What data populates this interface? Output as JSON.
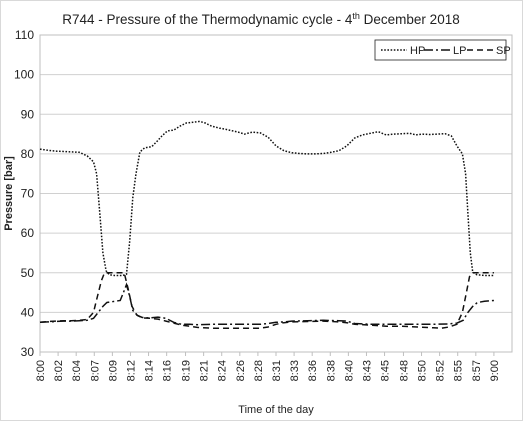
{
  "chart_data": {
    "type": "line",
    "title": "R744 - Pressure of the Thermodynamic cycle - 4",
    "title_sup": "th",
    "title_suffix": " December 2018",
    "xlabel": "Time of the day",
    "ylabel": "Pressure [bar]",
    "ylim": [
      30,
      110
    ],
    "yticks": [
      30,
      40,
      50,
      60,
      70,
      80,
      90,
      100,
      110
    ],
    "xlim": [
      0,
      60
    ],
    "xticks": [
      {
        "t": 0,
        "label": "8:00"
      },
      {
        "t": 2.3,
        "label": "8:02"
      },
      {
        "t": 4.6,
        "label": "8:04"
      },
      {
        "t": 6.9,
        "label": "8:07"
      },
      {
        "t": 9.2,
        "label": "8:09"
      },
      {
        "t": 11.5,
        "label": "8:12"
      },
      {
        "t": 13.8,
        "label": "8:14"
      },
      {
        "t": 16.1,
        "label": "8:16"
      },
      {
        "t": 18.5,
        "label": "8:19"
      },
      {
        "t": 20.8,
        "label": "8:21"
      },
      {
        "t": 23.1,
        "label": "8:24"
      },
      {
        "t": 25.4,
        "label": "8:26"
      },
      {
        "t": 27.7,
        "label": "8:28"
      },
      {
        "t": 30.0,
        "label": "8:31"
      },
      {
        "t": 32.3,
        "label": "8:33"
      },
      {
        "t": 34.6,
        "label": "8:36"
      },
      {
        "t": 36.9,
        "label": "8:38"
      },
      {
        "t": 39.2,
        "label": "8:40"
      },
      {
        "t": 41.5,
        "label": "8:43"
      },
      {
        "t": 43.8,
        "label": "8:45"
      },
      {
        "t": 46.2,
        "label": "8:48"
      },
      {
        "t": 48.5,
        "label": "8:50"
      },
      {
        "t": 50.8,
        "label": "8:52"
      },
      {
        "t": 53.1,
        "label": "8:55"
      },
      {
        "t": 55.4,
        "label": "8:57"
      },
      {
        "t": 57.7,
        "label": "9:00"
      }
    ],
    "grid": true,
    "legend_position": "top-right",
    "series": [
      {
        "name": "HP",
        "dash": "dotted",
        "points": [
          [
            0,
            81.2
          ],
          [
            1,
            80.9
          ],
          [
            2,
            80.7
          ],
          [
            3,
            80.6
          ],
          [
            4,
            80.5
          ],
          [
            5,
            80.4
          ],
          [
            6,
            79.5
          ],
          [
            6.8,
            78
          ],
          [
            7.2,
            75
          ],
          [
            7.6,
            65
          ],
          [
            8.0,
            55
          ],
          [
            8.4,
            50.5
          ],
          [
            8.8,
            49.5
          ],
          [
            9.5,
            49.3
          ],
          [
            10.5,
            49.3
          ],
          [
            11.0,
            49.6
          ],
          [
            11.4,
            58
          ],
          [
            11.8,
            69
          ],
          [
            12.2,
            75
          ],
          [
            12.7,
            80.5
          ],
          [
            13.3,
            81.5
          ],
          [
            14.2,
            81.8
          ],
          [
            14.8,
            83
          ],
          [
            15.5,
            84.5
          ],
          [
            16.2,
            85.8
          ],
          [
            17,
            86
          ],
          [
            17.8,
            87
          ],
          [
            18.6,
            87.8
          ],
          [
            19.5,
            88
          ],
          [
            20.3,
            88.2
          ],
          [
            21,
            87.8
          ],
          [
            21.8,
            87
          ],
          [
            22.8,
            86.5
          ],
          [
            23.6,
            86.2
          ],
          [
            24.5,
            85.8
          ],
          [
            25.2,
            85.5
          ],
          [
            26,
            85.0
          ],
          [
            27,
            85.5
          ],
          [
            28,
            85.3
          ],
          [
            29,
            84.2
          ],
          [
            30,
            82
          ],
          [
            31,
            80.8
          ],
          [
            32,
            80.3
          ],
          [
            33,
            80.1
          ],
          [
            34,
            80
          ],
          [
            35,
            80
          ],
          [
            36,
            80.1
          ],
          [
            37,
            80.4
          ],
          [
            38,
            80.8
          ],
          [
            39,
            82
          ],
          [
            40,
            84
          ],
          [
            41,
            84.8
          ],
          [
            42,
            85.2
          ],
          [
            43,
            85.6
          ],
          [
            44,
            84.8
          ],
          [
            45,
            85
          ],
          [
            46,
            85.1
          ],
          [
            47,
            85.2
          ],
          [
            47.8,
            84.8
          ],
          [
            48.6,
            85
          ],
          [
            49.5,
            84.9
          ],
          [
            50.5,
            85
          ],
          [
            51.5,
            85.1
          ],
          [
            52.3,
            84.5
          ],
          [
            53,
            82
          ],
          [
            53.7,
            80
          ],
          [
            54.1,
            75
          ],
          [
            54.4,
            65
          ],
          [
            54.7,
            55
          ],
          [
            55.0,
            50.2
          ],
          [
            55.5,
            49.5
          ],
          [
            56.5,
            49.3
          ],
          [
            57.7,
            49.3
          ]
        ]
      },
      {
        "name": "LP",
        "dash": "dash-dot",
        "points": [
          [
            0,
            37.5
          ],
          [
            1,
            37.6
          ],
          [
            2,
            37.7
          ],
          [
            3,
            37.8
          ],
          [
            4,
            37.8
          ],
          [
            5,
            37.9
          ],
          [
            6,
            38
          ],
          [
            6.8,
            38.5
          ],
          [
            7.4,
            40
          ],
          [
            8,
            41.5
          ],
          [
            8.5,
            42.5
          ],
          [
            9.5,
            42.8
          ],
          [
            10.2,
            43
          ],
          [
            10.6,
            45
          ],
          [
            11,
            47
          ],
          [
            11.4,
            44
          ],
          [
            11.8,
            40.5
          ],
          [
            12.4,
            39.2
          ],
          [
            13,
            38.7
          ],
          [
            14,
            38.6
          ],
          [
            15,
            38.8
          ],
          [
            16,
            38.5
          ],
          [
            17,
            37.5
          ],
          [
            18,
            37
          ],
          [
            19,
            37
          ],
          [
            20,
            36.9
          ],
          [
            22,
            37
          ],
          [
            24,
            37
          ],
          [
            26,
            37
          ],
          [
            28,
            37
          ],
          [
            29,
            37.2
          ],
          [
            30,
            37.5
          ],
          [
            31,
            37.6
          ],
          [
            32,
            37.8
          ],
          [
            34,
            37.9
          ],
          [
            36,
            38
          ],
          [
            38,
            37.9
          ],
          [
            39,
            37.8
          ],
          [
            40,
            37.2
          ],
          [
            42,
            37
          ],
          [
            44,
            37
          ],
          [
            46,
            37
          ],
          [
            48,
            37
          ],
          [
            50,
            37
          ],
          [
            52,
            37.1
          ],
          [
            53,
            37.3
          ],
          [
            53.8,
            38
          ],
          [
            54.4,
            40
          ],
          [
            55,
            41.5
          ],
          [
            55.6,
            42.5
          ],
          [
            56.5,
            42.8
          ],
          [
            57.7,
            43
          ]
        ]
      },
      {
        "name": "SP",
        "dash": "dashed",
        "points": [
          [
            0,
            37.5
          ],
          [
            1,
            37.7
          ],
          [
            2,
            37.8
          ],
          [
            3,
            37.9
          ],
          [
            4,
            37.9
          ],
          [
            5,
            38
          ],
          [
            6,
            38.2
          ],
          [
            6.8,
            40
          ],
          [
            7.3,
            44
          ],
          [
            7.8,
            48
          ],
          [
            8.2,
            50
          ],
          [
            9,
            50
          ],
          [
            10,
            50
          ],
          [
            10.7,
            50
          ],
          [
            11.2,
            46
          ],
          [
            11.7,
            41.5
          ],
          [
            12.3,
            39.3
          ],
          [
            13,
            38.6
          ],
          [
            14,
            38.5
          ],
          [
            15,
            38.3
          ],
          [
            16,
            37.8
          ],
          [
            17,
            37.3
          ],
          [
            18,
            36.8
          ],
          [
            19,
            36.5
          ],
          [
            20,
            36.2
          ],
          [
            22,
            36
          ],
          [
            24,
            36
          ],
          [
            26,
            36
          ],
          [
            28,
            36
          ],
          [
            29,
            36.3
          ],
          [
            30,
            37
          ],
          [
            31,
            37.4
          ],
          [
            32,
            37.6
          ],
          [
            34,
            37.7
          ],
          [
            36,
            37.8
          ],
          [
            38,
            37.6
          ],
          [
            39,
            37.4
          ],
          [
            40,
            37
          ],
          [
            42,
            36.8
          ],
          [
            44,
            36.5
          ],
          [
            46,
            36.5
          ],
          [
            48,
            36.3
          ],
          [
            50,
            36.1
          ],
          [
            51,
            36
          ],
          [
            52,
            36.3
          ],
          [
            53,
            37
          ],
          [
            53.7,
            40
          ],
          [
            54.2,
            45
          ],
          [
            54.6,
            49
          ],
          [
            55,
            50
          ],
          [
            56,
            50
          ],
          [
            57.7,
            50
          ]
        ]
      }
    ]
  }
}
